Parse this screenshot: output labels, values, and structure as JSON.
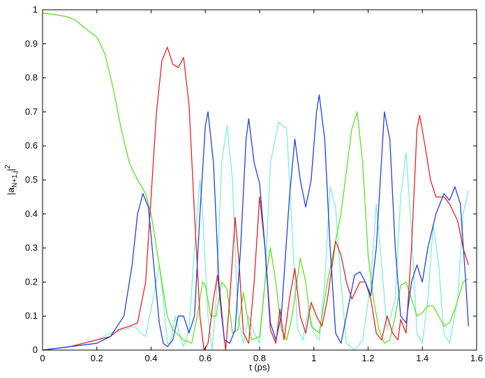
{
  "chart_data": {
    "type": "line",
    "xlabel": "t (ps)",
    "ylabel": {
      "base": "|a",
      "sub": "N+1,j",
      "tail": "|",
      "sup": "2"
    },
    "xlim": [
      0,
      1.6
    ],
    "ylim": [
      0,
      1
    ],
    "xticks": [
      "0",
      "0.2",
      "0.4",
      "0.6",
      "0.8",
      "1",
      "1.2",
      "1.4",
      "1.6"
    ],
    "yticks": [
      "0",
      "0.1",
      "0.2",
      "0.3",
      "0.4",
      "0.5",
      "0.6",
      "0.7",
      "0.8",
      "0.9",
      "1"
    ],
    "grid": false,
    "legend": "none",
    "series": [
      {
        "color": "#7cf0d8",
        "points": [
          [
            0,
            0
          ],
          [
            0.1,
            0.01
          ],
          [
            0.2,
            0.03
          ],
          [
            0.25,
            0.05
          ],
          [
            0.3,
            0.06
          ],
          [
            0.34,
            0.07
          ],
          [
            0.36,
            0.05
          ],
          [
            0.38,
            0.04
          ],
          [
            0.4,
            0.12
          ],
          [
            0.43,
            0.25
          ],
          [
            0.445,
            0.15
          ],
          [
            0.46,
            0.02
          ],
          [
            0.47,
            0.02
          ],
          [
            0.49,
            0.1
          ],
          [
            0.5,
            0.06
          ],
          [
            0.52,
            0.01
          ],
          [
            0.54,
            0.06
          ],
          [
            0.56,
            0.3
          ],
          [
            0.58,
            0.5
          ],
          [
            0.59,
            0.4
          ],
          [
            0.61,
            0.1
          ],
          [
            0.625,
            0.0
          ],
          [
            0.64,
            0.15
          ],
          [
            0.66,
            0.55
          ],
          [
            0.68,
            0.66
          ],
          [
            0.7,
            0.5
          ],
          [
            0.72,
            0.1
          ],
          [
            0.74,
            0.02
          ],
          [
            0.76,
            0.1
          ],
          [
            0.78,
            0.05
          ],
          [
            0.8,
            0.02
          ],
          [
            0.82,
            0.2
          ],
          [
            0.84,
            0.55
          ],
          [
            0.87,
            0.67
          ],
          [
            0.9,
            0.65
          ],
          [
            0.92,
            0.35
          ],
          [
            0.94,
            0.06
          ],
          [
            0.96,
            0.03
          ],
          [
            0.98,
            0.12
          ],
          [
            1.0,
            0.05
          ],
          [
            1.02,
            0.03
          ],
          [
            1.04,
            0.2
          ],
          [
            1.06,
            0.48
          ],
          [
            1.08,
            0.42
          ],
          [
            1.1,
            0.2
          ],
          [
            1.12,
            0.02
          ],
          [
            1.15,
            0.0
          ],
          [
            1.18,
            0.03
          ],
          [
            1.21,
            0.2
          ],
          [
            1.23,
            0.43
          ],
          [
            1.25,
            0.25
          ],
          [
            1.27,
            0.06
          ],
          [
            1.3,
            0.15
          ],
          [
            1.32,
            0.45
          ],
          [
            1.34,
            0.58
          ],
          [
            1.36,
            0.35
          ],
          [
            1.38,
            0.05
          ],
          [
            1.4,
            0.02
          ],
          [
            1.42,
            0.15
          ],
          [
            1.44,
            0.37
          ],
          [
            1.46,
            0.25
          ],
          [
            1.48,
            0.05
          ],
          [
            1.5,
            0.02
          ],
          [
            1.53,
            0.15
          ],
          [
            1.55,
            0.4
          ],
          [
            1.57,
            0.47
          ]
        ]
      },
      {
        "color": "#60e020",
        "points": [
          [
            0,
            0.99
          ],
          [
            0.05,
            0.985
          ],
          [
            0.09,
            0.98
          ],
          [
            0.12,
            0.97
          ],
          [
            0.15,
            0.95
          ],
          [
            0.2,
            0.92
          ],
          [
            0.23,
            0.87
          ],
          [
            0.26,
            0.77
          ],
          [
            0.29,
            0.65
          ],
          [
            0.32,
            0.55
          ],
          [
            0.35,
            0.5
          ],
          [
            0.38,
            0.46
          ],
          [
            0.4,
            0.4
          ],
          [
            0.42,
            0.3
          ],
          [
            0.44,
            0.2
          ],
          [
            0.46,
            0.1
          ],
          [
            0.48,
            0.06
          ],
          [
            0.52,
            0.03
          ],
          [
            0.55,
            0.02
          ],
          [
            0.57,
            0.1
          ],
          [
            0.59,
            0.2
          ],
          [
            0.6,
            0.19
          ],
          [
            0.62,
            0.1
          ],
          [
            0.64,
            0.1
          ],
          [
            0.66,
            0.2
          ],
          [
            0.68,
            0.18
          ],
          [
            0.7,
            0.05
          ],
          [
            0.72,
            0.06
          ],
          [
            0.74,
            0.17
          ],
          [
            0.75,
            0.12
          ],
          [
            0.77,
            0.03
          ],
          [
            0.8,
            0.04
          ],
          [
            0.82,
            0.2
          ],
          [
            0.84,
            0.3
          ],
          [
            0.86,
            0.2
          ],
          [
            0.88,
            0.06
          ],
          [
            0.9,
            0.03
          ],
          [
            0.92,
            0.1
          ],
          [
            0.95,
            0.27
          ],
          [
            0.97,
            0.2
          ],
          [
            0.99,
            0.07
          ],
          [
            1.02,
            0.05
          ],
          [
            1.05,
            0.2
          ],
          [
            1.1,
            0.4
          ],
          [
            1.14,
            0.65
          ],
          [
            1.16,
            0.7
          ],
          [
            1.18,
            0.55
          ],
          [
            1.2,
            0.28
          ],
          [
            1.22,
            0.15
          ],
          [
            1.24,
            0.06
          ],
          [
            1.26,
            0.02
          ],
          [
            1.28,
            0.03
          ],
          [
            1.3,
            0.1
          ],
          [
            1.32,
            0.19
          ],
          [
            1.34,
            0.2
          ],
          [
            1.36,
            0.15
          ],
          [
            1.38,
            0.1
          ],
          [
            1.4,
            0.11
          ],
          [
            1.42,
            0.13
          ],
          [
            1.44,
            0.13
          ],
          [
            1.46,
            0.1
          ],
          [
            1.48,
            0.07
          ],
          [
            1.5,
            0.08
          ],
          [
            1.52,
            0.12
          ],
          [
            1.55,
            0.2
          ],
          [
            1.57,
            0.21
          ]
        ]
      },
      {
        "color": "#e82020",
        "points": [
          [
            0,
            0
          ],
          [
            0.1,
            0.01
          ],
          [
            0.15,
            0.02
          ],
          [
            0.2,
            0.03
          ],
          [
            0.25,
            0.04
          ],
          [
            0.28,
            0.06
          ],
          [
            0.32,
            0.07
          ],
          [
            0.35,
            0.08
          ],
          [
            0.38,
            0.2
          ],
          [
            0.4,
            0.45
          ],
          [
            0.42,
            0.7
          ],
          [
            0.44,
            0.85
          ],
          [
            0.46,
            0.89
          ],
          [
            0.48,
            0.84
          ],
          [
            0.5,
            0.83
          ],
          [
            0.52,
            0.86
          ],
          [
            0.54,
            0.72
          ],
          [
            0.56,
            0.4
          ],
          [
            0.58,
            0.1
          ],
          [
            0.595,
            0.0
          ],
          [
            0.61,
            0.02
          ],
          [
            0.63,
            0.15
          ],
          [
            0.645,
            0.22
          ],
          [
            0.66,
            0.1
          ],
          [
            0.675,
            0.0
          ],
          [
            0.69,
            0.15
          ],
          [
            0.71,
            0.39
          ],
          [
            0.725,
            0.25
          ],
          [
            0.74,
            0.05
          ],
          [
            0.76,
            0.02
          ],
          [
            0.78,
            0.2
          ],
          [
            0.8,
            0.45
          ],
          [
            0.82,
            0.3
          ],
          [
            0.84,
            0.06
          ],
          [
            0.86,
            0.02
          ],
          [
            0.875,
            0.12
          ],
          [
            0.89,
            0.03
          ],
          [
            0.91,
            0.15
          ],
          [
            0.93,
            0.24
          ],
          [
            0.95,
            0.1
          ],
          [
            0.97,
            0.05
          ],
          [
            0.99,
            0.14
          ],
          [
            1.01,
            0.1
          ],
          [
            1.03,
            0.07
          ],
          [
            1.05,
            0.15
          ],
          [
            1.08,
            0.32
          ],
          [
            1.1,
            0.28
          ],
          [
            1.12,
            0.2
          ],
          [
            1.14,
            0.15
          ],
          [
            1.17,
            0.2
          ],
          [
            1.19,
            0.2
          ],
          [
            1.21,
            0.15
          ],
          [
            1.23,
            0.05
          ],
          [
            1.25,
            0.03
          ],
          [
            1.27,
            0.1
          ],
          [
            1.29,
            0.05
          ],
          [
            1.31,
            0.03
          ],
          [
            1.32,
            0.09
          ],
          [
            1.34,
            0.05
          ],
          [
            1.36,
            0.3
          ],
          [
            1.38,
            0.65
          ],
          [
            1.39,
            0.69
          ],
          [
            1.41,
            0.6
          ],
          [
            1.43,
            0.5
          ],
          [
            1.45,
            0.45
          ],
          [
            1.48,
            0.45
          ],
          [
            1.5,
            0.43
          ],
          [
            1.53,
            0.38
          ],
          [
            1.55,
            0.3
          ],
          [
            1.57,
            0.25
          ]
        ]
      },
      {
        "color": "#2040e0",
        "points": [
          [
            0,
            0
          ],
          [
            0.1,
            0.01
          ],
          [
            0.2,
            0.02
          ],
          [
            0.25,
            0.04
          ],
          [
            0.3,
            0.1
          ],
          [
            0.33,
            0.25
          ],
          [
            0.35,
            0.4
          ],
          [
            0.37,
            0.46
          ],
          [
            0.39,
            0.42
          ],
          [
            0.41,
            0.25
          ],
          [
            0.43,
            0.08
          ],
          [
            0.445,
            0.02
          ],
          [
            0.46,
            0.01
          ],
          [
            0.48,
            0.03
          ],
          [
            0.5,
            0.1
          ],
          [
            0.52,
            0.1
          ],
          [
            0.54,
            0.05
          ],
          [
            0.56,
            0.1
          ],
          [
            0.58,
            0.4
          ],
          [
            0.6,
            0.66
          ],
          [
            0.61,
            0.7
          ],
          [
            0.63,
            0.55
          ],
          [
            0.65,
            0.2
          ],
          [
            0.67,
            0.03
          ],
          [
            0.69,
            0.02
          ],
          [
            0.71,
            0.06
          ],
          [
            0.73,
            0.3
          ],
          [
            0.75,
            0.62
          ],
          [
            0.76,
            0.68
          ],
          [
            0.78,
            0.55
          ],
          [
            0.8,
            0.49
          ],
          [
            0.82,
            0.3
          ],
          [
            0.84,
            0.08
          ],
          [
            0.86,
            0.03
          ],
          [
            0.88,
            0.1
          ],
          [
            0.91,
            0.45
          ],
          [
            0.93,
            0.62
          ],
          [
            0.95,
            0.5
          ],
          [
            0.97,
            0.42
          ],
          [
            0.99,
            0.5
          ],
          [
            1.01,
            0.7
          ],
          [
            1.02,
            0.75
          ],
          [
            1.04,
            0.62
          ],
          [
            1.06,
            0.3
          ],
          [
            1.08,
            0.05
          ],
          [
            1.1,
            0.02
          ],
          [
            1.12,
            0.1
          ],
          [
            1.15,
            0.22
          ],
          [
            1.17,
            0.23
          ],
          [
            1.19,
            0.2
          ],
          [
            1.21,
            0.16
          ],
          [
            1.23,
            0.3
          ],
          [
            1.26,
            0.7
          ],
          [
            1.28,
            0.62
          ],
          [
            1.3,
            0.3
          ],
          [
            1.32,
            0.1
          ],
          [
            1.34,
            0.08
          ],
          [
            1.36,
            0.2
          ],
          [
            1.38,
            0.25
          ],
          [
            1.4,
            0.2
          ],
          [
            1.42,
            0.3
          ],
          [
            1.45,
            0.4
          ],
          [
            1.48,
            0.46
          ],
          [
            1.5,
            0.44
          ],
          [
            1.52,
            0.48
          ],
          [
            1.54,
            0.43
          ],
          [
            1.56,
            0.2
          ],
          [
            1.57,
            0.07
          ]
        ]
      }
    ]
  }
}
